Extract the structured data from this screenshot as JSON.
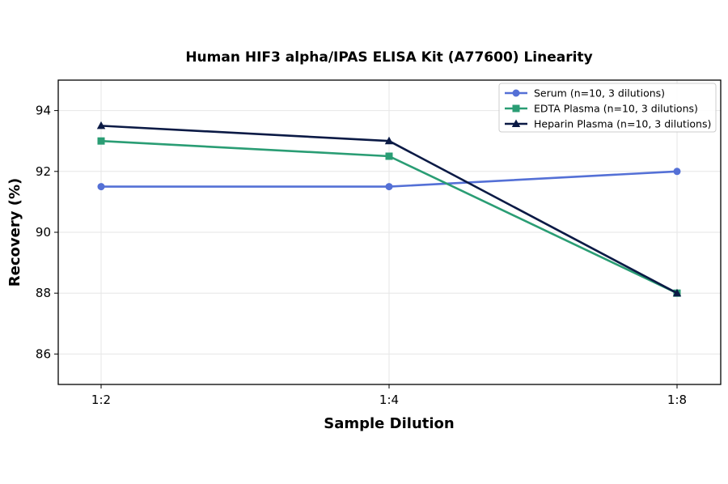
{
  "chart_data": {
    "type": "line",
    "title": "Human HIF3 alpha/IPAS ELISA Kit (A77600) Linearity",
    "xlabel": "Sample Dilution",
    "ylabel": "Recovery (%)",
    "categories": [
      "1:2",
      "1:4",
      "1:8"
    ],
    "ylim": [
      85,
      95
    ],
    "yticks": [
      86,
      88,
      90,
      92,
      94
    ],
    "grid": true,
    "legend_position": "top-right",
    "series": [
      {
        "name": "Serum (n=10, 3 dilutions)",
        "values": [
          91.5,
          91.5,
          92.0
        ],
        "color": "#5470d6",
        "marker": "circle"
      },
      {
        "name": "EDTA Plasma (n=10, 3 dilutions)",
        "values": [
          93.0,
          92.5,
          88.0
        ],
        "color": "#2a9d74",
        "marker": "square"
      },
      {
        "name": "Heparin Plasma (n=10, 3 dilutions)",
        "values": [
          93.5,
          93.0,
          88.0
        ],
        "color": "#0b1a45",
        "marker": "triangle"
      }
    ]
  }
}
